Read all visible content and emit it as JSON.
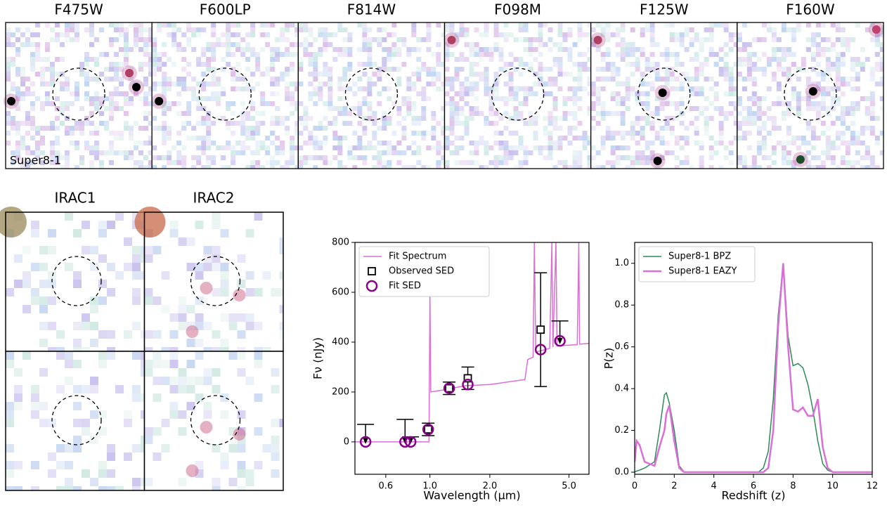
{
  "cutouts": {
    "filters": [
      "F475W",
      "F600LP",
      "F814W",
      "F098M",
      "F125W",
      "F160W"
    ],
    "object": "Super8-1",
    "irac": [
      "IRAC1",
      "IRAC2"
    ]
  },
  "chart_data": [
    {
      "type": "line",
      "xlabel": "Wavelength (μm)",
      "ylabel": "Fν (nJy)",
      "log_x": true,
      "xlim": [
        0.42,
        6.3
      ],
      "ylim": [
        -130,
        800
      ],
      "xticks": [
        0.6,
        {
          "value": 1,
          "label": "1.0"
        },
        {
          "value": 2,
          "label": "2.0"
        },
        {
          "value": 5,
          "label": "5.0"
        }
      ],
      "yticks": [
        0,
        200,
        400,
        600,
        800
      ],
      "legend": "upper left",
      "series": [
        {
          "name": "Fit Spectrum",
          "color": "#da70d6",
          "marker": "line",
          "x": [
            0.4,
            0.99,
            1.0,
            1.01,
            1.2,
            1.5,
            2.0,
            3.0,
            3.1,
            3.3,
            3.35,
            3.4,
            4.0,
            4.1,
            4.15,
            4.3,
            4.35,
            5.5,
            5.6,
            5.65,
            6.3
          ],
          "values": [
            0,
            0,
            600,
            200,
            210,
            225,
            230,
            250,
            330,
            340,
            800,
            360,
            375,
            800,
            380,
            800,
            385,
            390,
            800,
            392,
            395
          ]
        },
        {
          "name": "Observed SED",
          "color": "#000000",
          "marker": "square",
          "x": [
            0.475,
            0.75,
            0.8,
            0.98,
            1.25,
            1.55,
            3.6,
            4.5
          ],
          "values": [
            0,
            0,
            0,
            50,
            215,
            255,
            450,
            400
          ],
          "errors": [
            70,
            90,
            20,
            25,
            25,
            45,
            228,
            85
          ],
          "upper_limit": [
            true,
            true,
            true,
            false,
            false,
            false,
            false,
            true
          ]
        },
        {
          "name": "Fit SED",
          "color": "#8b008b",
          "marker": "circle",
          "x": [
            0.475,
            0.75,
            0.8,
            0.98,
            1.25,
            1.55,
            3.6,
            4.5
          ],
          "values": [
            0,
            0,
            0,
            50,
            215,
            230,
            370,
            405
          ]
        }
      ]
    },
    {
      "type": "line",
      "xlabel": "Redshift (z)",
      "ylabel": "P(z)",
      "log_x": false,
      "xlim": [
        0,
        12
      ],
      "ylim": [
        -0.01,
        1.1
      ],
      "xticks": [
        0,
        2,
        4,
        6,
        8,
        10,
        12
      ],
      "yticks": [
        {
          "value": 0,
          "label": "0.0"
        },
        0.2,
        0.4,
        0.6,
        0.8,
        {
          "value": 1,
          "label": "1.0"
        }
      ],
      "legend": "upper left",
      "series": [
        {
          "name": "Super8-1 BPZ",
          "color": "#2e8b57",
          "marker": "line",
          "width": 1.5,
          "x": [
            0,
            0.1,
            0.25,
            0.5,
            1,
            1.25,
            1.5,
            1.6,
            1.75,
            2,
            2.25,
            2.5,
            6.25,
            6.5,
            6.75,
            7,
            7.25,
            7.5,
            7.75,
            8,
            8.25,
            8.5,
            8.75,
            9,
            9.25,
            9.5,
            9.75,
            10,
            12
          ],
          "values": [
            0,
            0.005,
            0.01,
            0.02,
            0.05,
            0.2,
            0.37,
            0.38,
            0.33,
            0.2,
            0.03,
            0,
            0,
            0.02,
            0.1,
            0.35,
            0.75,
            1.0,
            0.65,
            0.51,
            0.52,
            0.5,
            0.42,
            0.3,
            0.15,
            0.04,
            0.01,
            0,
            0
          ]
        },
        {
          "name": "Super8-1 EAZY",
          "color": "#da70d6",
          "marker": "line",
          "width": 2.5,
          "x": [
            0,
            0.1,
            0.25,
            0.5,
            1,
            1.25,
            1.5,
            1.6,
            1.75,
            2,
            2.25,
            2.5,
            6.25,
            6.5,
            6.75,
            7,
            7.25,
            7.5,
            7.75,
            8,
            8.25,
            8.5,
            8.75,
            9,
            9.25,
            9.5,
            9.75,
            10,
            12
          ],
          "values": [
            0.05,
            0.15,
            0.13,
            0.05,
            0.03,
            0.12,
            0.2,
            0.28,
            0.32,
            0.15,
            0.02,
            0,
            0,
            0,
            0.02,
            0.2,
            0.7,
            1.0,
            0.6,
            0.3,
            0.29,
            0.31,
            0.27,
            0.27,
            0.35,
            0.12,
            0.02,
            0,
            0
          ]
        }
      ]
    }
  ]
}
